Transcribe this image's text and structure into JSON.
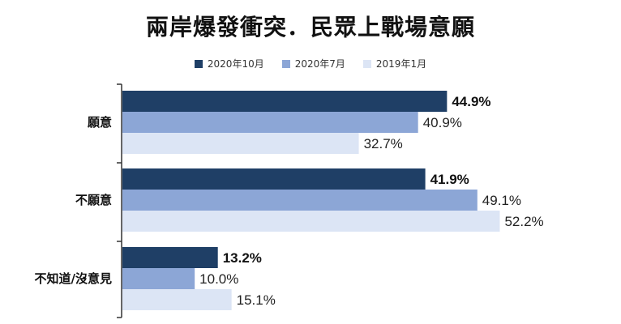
{
  "colors": {
    "series_2020_10": "#1f3f66",
    "series_2020_7": "#8ca6d6",
    "series_2019_1": "#dce5f5",
    "axis": "#333333"
  },
  "chart_data": {
    "type": "bar",
    "orientation": "horizontal",
    "title": "兩岸爆發衝突．民眾上戰場意願",
    "categories": [
      "願意",
      "不願意",
      "不知道/沒意見"
    ],
    "series": [
      {
        "name": "2020年10月",
        "values": [
          44.9,
          41.9,
          13.2
        ],
        "labels": [
          "44.9%",
          "41.9%",
          "13.2%"
        ],
        "bold_labels": true
      },
      {
        "name": "2020年7月",
        "values": [
          40.9,
          49.1,
          10.0
        ],
        "labels": [
          "40.9%",
          "49.1%",
          "10.0%"
        ],
        "bold_labels": false
      },
      {
        "name": "2019年1月",
        "values": [
          32.7,
          52.2,
          15.1
        ],
        "labels": [
          "32.7%",
          "52.2%",
          "15.1%"
        ],
        "bold_labels": false
      }
    ],
    "xlim": [
      0,
      60
    ],
    "grid": false,
    "legend_position": "top-center"
  }
}
